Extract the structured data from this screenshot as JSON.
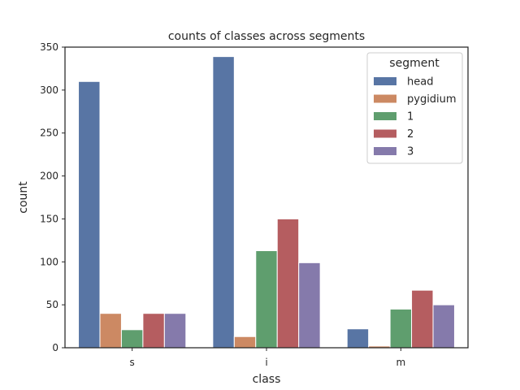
{
  "chart_data": {
    "type": "bar",
    "title": "counts of classes across segments",
    "xlabel": "class",
    "ylabel": "count",
    "categories": [
      "s",
      "i",
      "m"
    ],
    "ylim": [
      0,
      350
    ],
    "yticks": [
      0,
      50,
      100,
      150,
      200,
      250,
      300,
      350
    ],
    "grid": false,
    "legend": {
      "title": "segment",
      "placement": "top-right"
    },
    "series": [
      {
        "name": "head",
        "color": "#5875a4",
        "values": [
          310,
          339,
          22
        ]
      },
      {
        "name": "pygidium",
        "color": "#cc8963",
        "values": [
          40,
          13,
          2
        ]
      },
      {
        "name": "1",
        "color": "#5f9e6e",
        "values": [
          21,
          113,
          45
        ]
      },
      {
        "name": "2",
        "color": "#b55d60",
        "values": [
          40,
          150,
          67
        ]
      },
      {
        "name": "3",
        "color": "#857aab",
        "values": [
          40,
          99,
          50
        ]
      }
    ]
  }
}
